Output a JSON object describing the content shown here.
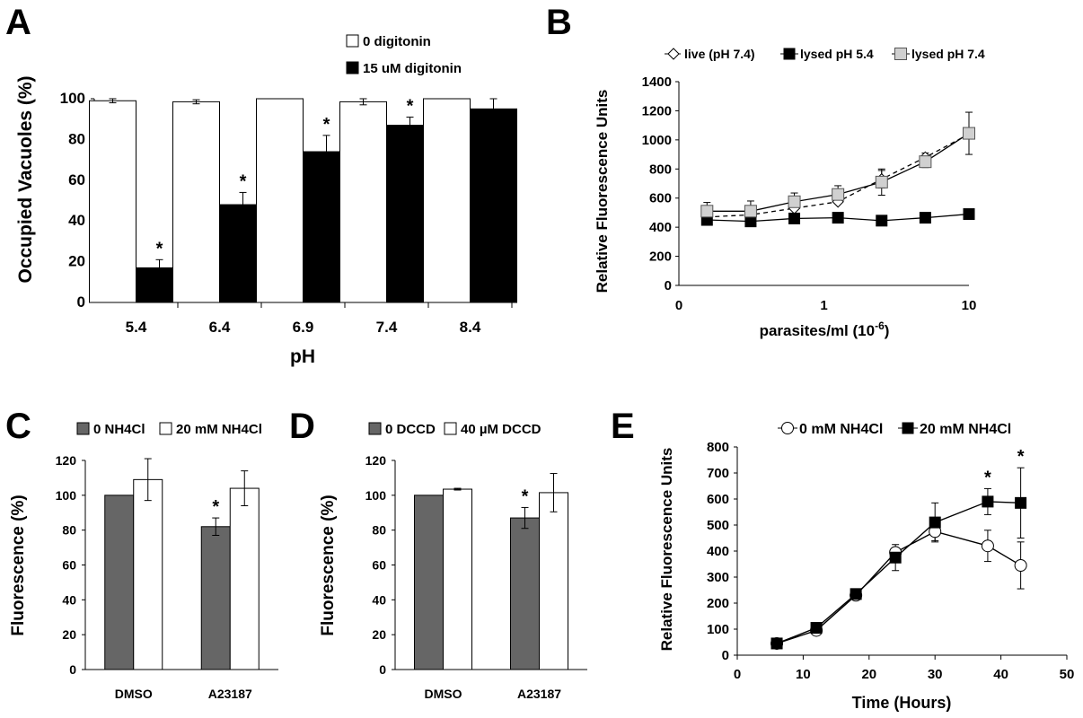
{
  "chart_data": [
    {
      "panel": "A",
      "type": "bar",
      "categories": [
        "5.4",
        "6.4",
        "6.9",
        "7.4",
        "8.4"
      ],
      "series": [
        {
          "name": "0 digitonin",
          "color": "#ffffff",
          "values": [
            99,
            98.5,
            100,
            98.5,
            100
          ],
          "errors": [
            1,
            1,
            0,
            1.5,
            0
          ]
        },
        {
          "name": "15 uM digitonin",
          "color": "#000000",
          "values": [
            17,
            48,
            74,
            87,
            95
          ],
          "errors": [
            4,
            6,
            8,
            4,
            5
          ]
        }
      ],
      "significant": [
        false,
        false,
        false,
        false,
        false
      ],
      "significant_series2": [
        true,
        true,
        true,
        true,
        false
      ],
      "xlabel": "pH",
      "ylabel": "Occupied Vacuoles (%)",
      "ylim": [
        0,
        100
      ],
      "yticks": [
        "0",
        "20",
        "40",
        "60",
        "80",
        "100"
      ],
      "annotation": "*",
      "legend_position": "top-right"
    },
    {
      "panel": "B",
      "type": "line",
      "x": [
        0.15625,
        0.3125,
        0.625,
        1.25,
        2.5,
        5,
        10
      ],
      "xticks": [
        "0",
        "1",
        "10"
      ],
      "xscale": "log",
      "series": [
        {
          "name": "live (pH 7.4)",
          "marker": "open-diamond",
          "line": "dashed",
          "values": [
            470,
            485,
            530,
            575,
            730,
            880,
            1040
          ],
          "errors": [
            0,
            0,
            0,
            0,
            60,
            30,
            0
          ]
        },
        {
          "name": "lysed pH 5.4",
          "marker": "filled-square",
          "line": "solid",
          "values": [
            450,
            440,
            460,
            465,
            445,
            465,
            490
          ],
          "errors": [
            0,
            0,
            0,
            0,
            0,
            0,
            0
          ]
        },
        {
          "name": "lysed pH 7.4",
          "marker": "grey-square",
          "line": "solid",
          "values": [
            510,
            510,
            575,
            625,
            710,
            850,
            1045
          ],
          "errors": [
            60,
            70,
            60,
            60,
            90,
            40,
            145
          ]
        }
      ],
      "xlabel": "parasites/ml (10",
      "xlabel_sup": "-6",
      "xlabel_end": ")",
      "ylabel": "Relative Fluorescence Units",
      "ylim": [
        0,
        1400
      ],
      "yticks": [
        "0",
        "200",
        "400",
        "600",
        "800",
        "1000",
        "1200",
        "1400"
      ],
      "legend_position": "top"
    },
    {
      "panel": "C",
      "type": "bar",
      "categories": [
        "DMSO",
        "A23187"
      ],
      "series": [
        {
          "name": "0 NH4Cl",
          "color": "#666666",
          "values": [
            100,
            82
          ],
          "errors": [
            0,
            5
          ]
        },
        {
          "name": "20 mM NH4Cl",
          "color": "#ffffff",
          "values": [
            109,
            104
          ],
          "errors": [
            12,
            10
          ]
        }
      ],
      "significant_series1": [
        false,
        true
      ],
      "ylabel": "Fluorescence (%)",
      "ylim": [
        0,
        120
      ],
      "yticks": [
        "0",
        "20",
        "40",
        "60",
        "80",
        "100",
        "120"
      ],
      "annotation": "*",
      "legend_position": "top"
    },
    {
      "panel": "D",
      "type": "bar",
      "categories": [
        "DMSO",
        "A23187"
      ],
      "series": [
        {
          "name": "0 DCCD",
          "color": "#666666",
          "values": [
            100,
            87
          ],
          "errors": [
            0,
            6
          ]
        },
        {
          "name": "40 µM DCCD",
          "color": "#ffffff",
          "values": [
            103.5,
            101.5
          ],
          "errors": [
            0.5,
            11
          ]
        }
      ],
      "significant_series1": [
        false,
        true
      ],
      "ylabel": "Fluorescence (%)",
      "ylim": [
        0,
        120
      ],
      "yticks": [
        "0",
        "20",
        "40",
        "60",
        "80",
        "100",
        "120"
      ],
      "annotation": "*",
      "legend_position": "top"
    },
    {
      "panel": "E",
      "type": "line",
      "x": [
        6,
        12,
        18,
        24,
        30,
        38,
        43
      ],
      "series": [
        {
          "name": "0 mM NH4Cl",
          "marker": "open-circle",
          "values": [
            45,
            95,
            230,
            395,
            475,
            420,
            345
          ],
          "errors": [
            0,
            10,
            15,
            15,
            35,
            60,
            90
          ]
        },
        {
          "name": "20 mM NH4Cl",
          "marker": "filled-square",
          "values": [
            45,
            105,
            235,
            375,
            510,
            590,
            585
          ],
          "errors": [
            0,
            10,
            15,
            50,
            75,
            50,
            135
          ]
        }
      ],
      "significant": [
        false,
        false,
        false,
        false,
        false,
        true,
        true
      ],
      "xlabel": "Time (Hours)",
      "ylabel": "Relative Fluorescence Units",
      "xlim": [
        0,
        50
      ],
      "xticks": [
        "0",
        "10",
        "20",
        "30",
        "40",
        "50"
      ],
      "ylim": [
        0,
        800
      ],
      "yticks": [
        "0",
        "100",
        "200",
        "300",
        "400",
        "500",
        "600",
        "700",
        "800"
      ],
      "annotation": "*",
      "legend_position": "top"
    }
  ]
}
